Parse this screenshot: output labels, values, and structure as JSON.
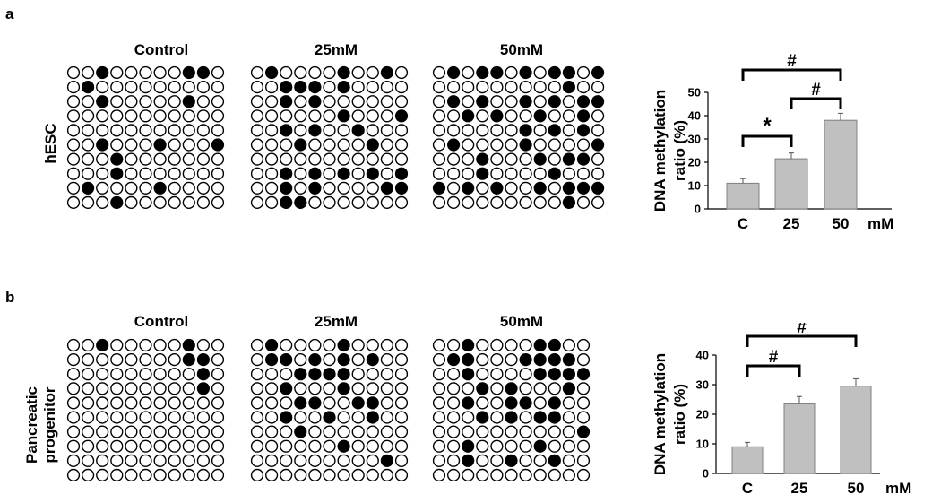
{
  "panels": [
    {
      "letter": "a",
      "row_label_lines": [
        "hESC"
      ],
      "conditions": [
        "Control",
        "25mM",
        "50mM"
      ],
      "grids": [
        [
          [
            0,
            0,
            1,
            0,
            0,
            0,
            0,
            0,
            1,
            1,
            0
          ],
          [
            0,
            1,
            0,
            0,
            0,
            0,
            0,
            0,
            0,
            0,
            0
          ],
          [
            0,
            0,
            1,
            0,
            0,
            0,
            0,
            0,
            1,
            0,
            0
          ],
          [
            0,
            0,
            0,
            0,
            0,
            0,
            0,
            0,
            0,
            0,
            0
          ],
          [
            0,
            0,
            0,
            0,
            0,
            0,
            0,
            0,
            0,
            0,
            0
          ],
          [
            0,
            0,
            1,
            0,
            0,
            0,
            1,
            0,
            0,
            0,
            1
          ],
          [
            0,
            0,
            0,
            1,
            0,
            0,
            0,
            0,
            0,
            0,
            0
          ],
          [
            0,
            0,
            0,
            1,
            0,
            0,
            0,
            0,
            0,
            0,
            0
          ],
          [
            0,
            1,
            0,
            0,
            0,
            0,
            1,
            0,
            0,
            0,
            0
          ],
          [
            0,
            0,
            0,
            1,
            0,
            0,
            0,
            0,
            0,
            0,
            0
          ]
        ],
        [
          [
            0,
            1,
            0,
            0,
            0,
            0,
            1,
            0,
            0,
            1,
            0
          ],
          [
            0,
            0,
            1,
            1,
            1,
            0,
            1,
            0,
            0,
            0,
            0
          ],
          [
            0,
            0,
            1,
            0,
            1,
            0,
            0,
            0,
            0,
            0,
            0
          ],
          [
            0,
            0,
            0,
            0,
            0,
            0,
            1,
            0,
            0,
            0,
            1
          ],
          [
            0,
            0,
            1,
            0,
            1,
            0,
            0,
            1,
            0,
            0,
            0
          ],
          [
            0,
            0,
            0,
            1,
            0,
            0,
            0,
            0,
            1,
            0,
            0
          ],
          [
            0,
            0,
            0,
            0,
            0,
            0,
            0,
            0,
            0,
            0,
            0
          ],
          [
            0,
            0,
            1,
            0,
            1,
            0,
            1,
            0,
            1,
            0,
            1
          ],
          [
            0,
            0,
            1,
            0,
            1,
            0,
            0,
            0,
            0,
            1,
            1
          ],
          [
            0,
            0,
            1,
            1,
            0,
            0,
            0,
            0,
            0,
            0,
            0
          ]
        ],
        [
          [
            0,
            1,
            0,
            1,
            1,
            0,
            1,
            0,
            1,
            1,
            0,
            1
          ],
          [
            0,
            0,
            0,
            0,
            0,
            0,
            0,
            0,
            0,
            1,
            0,
            0
          ],
          [
            0,
            1,
            0,
            1,
            0,
            0,
            1,
            0,
            1,
            0,
            1,
            1
          ],
          [
            0,
            0,
            1,
            0,
            1,
            0,
            0,
            1,
            0,
            0,
            1,
            0
          ],
          [
            0,
            0,
            0,
            0,
            0,
            0,
            1,
            0,
            1,
            0,
            1,
            0
          ],
          [
            0,
            1,
            0,
            0,
            0,
            0,
            1,
            0,
            0,
            0,
            0,
            1
          ],
          [
            0,
            0,
            0,
            1,
            0,
            0,
            0,
            1,
            0,
            1,
            1,
            0
          ],
          [
            0,
            0,
            0,
            1,
            0,
            0,
            0,
            0,
            1,
            0,
            0,
            0
          ],
          [
            1,
            0,
            1,
            0,
            1,
            0,
            0,
            1,
            0,
            1,
            1,
            1
          ],
          [
            0,
            0,
            0,
            0,
            0,
            0,
            0,
            0,
            0,
            1,
            0,
            0
          ]
        ]
      ]
    },
    {
      "letter": "b",
      "row_label_lines": [
        "Pancreatic",
        "progenitor"
      ],
      "conditions": [
        "Control",
        "25mM",
        "50mM"
      ],
      "grids": [
        [
          [
            0,
            0,
            1,
            0,
            0,
            0,
            0,
            0,
            1,
            0,
            0
          ],
          [
            0,
            0,
            0,
            0,
            0,
            0,
            0,
            0,
            1,
            1,
            0
          ],
          [
            0,
            0,
            0,
            0,
            0,
            0,
            0,
            0,
            0,
            1,
            0
          ],
          [
            0,
            0,
            0,
            0,
            0,
            0,
            0,
            0,
            0,
            1,
            0
          ],
          [
            0,
            0,
            0,
            0,
            0,
            0,
            0,
            0,
            0,
            0,
            0
          ],
          [
            0,
            0,
            0,
            0,
            0,
            0,
            0,
            0,
            0,
            0,
            0
          ],
          [
            0,
            0,
            0,
            0,
            0,
            0,
            0,
            0,
            0,
            0,
            0
          ],
          [
            0,
            0,
            0,
            0,
            0,
            0,
            0,
            0,
            0,
            0,
            0
          ],
          [
            0,
            0,
            0,
            0,
            0,
            0,
            0,
            0,
            0,
            0,
            0
          ],
          [
            0,
            0,
            0,
            0,
            0,
            0,
            0,
            0,
            0,
            0,
            0
          ]
        ],
        [
          [
            0,
            1,
            0,
            0,
            0,
            0,
            1,
            0,
            0,
            0,
            0
          ],
          [
            0,
            1,
            1,
            0,
            1,
            0,
            1,
            0,
            1,
            0,
            0
          ],
          [
            0,
            0,
            0,
            1,
            1,
            1,
            1,
            0,
            0,
            0,
            0
          ],
          [
            0,
            0,
            1,
            0,
            0,
            0,
            1,
            0,
            0,
            0,
            0
          ],
          [
            0,
            0,
            0,
            1,
            1,
            0,
            0,
            1,
            1,
            0,
            0
          ],
          [
            0,
            0,
            1,
            0,
            0,
            1,
            0,
            0,
            1,
            0,
            0
          ],
          [
            0,
            0,
            0,
            1,
            0,
            0,
            0,
            0,
            0,
            0,
            0
          ],
          [
            0,
            0,
            0,
            0,
            0,
            0,
            1,
            0,
            0,
            0,
            0
          ],
          [
            0,
            0,
            0,
            0,
            0,
            0,
            0,
            0,
            0,
            1,
            0
          ],
          [
            0,
            0,
            0,
            0,
            0,
            0,
            0,
            0,
            0,
            0,
            0
          ]
        ],
        [
          [
            0,
            0,
            1,
            0,
            0,
            0,
            0,
            1,
            1,
            0,
            0
          ],
          [
            0,
            1,
            1,
            0,
            0,
            0,
            1,
            1,
            1,
            1,
            0
          ],
          [
            0,
            0,
            1,
            0,
            0,
            0,
            0,
            1,
            1,
            1,
            1
          ],
          [
            0,
            0,
            0,
            1,
            0,
            1,
            0,
            0,
            0,
            1,
            0
          ],
          [
            0,
            0,
            1,
            0,
            0,
            1,
            1,
            0,
            1,
            0,
            0
          ],
          [
            0,
            0,
            0,
            1,
            0,
            1,
            0,
            1,
            1,
            0,
            0
          ],
          [
            0,
            0,
            0,
            0,
            0,
            0,
            0,
            0,
            0,
            0,
            1
          ],
          [
            0,
            0,
            1,
            0,
            0,
            0,
            0,
            1,
            0,
            0,
            0
          ],
          [
            0,
            0,
            1,
            0,
            0,
            1,
            0,
            0,
            1,
            0,
            0
          ],
          [
            0,
            0,
            0,
            0,
            0,
            0,
            0,
            0,
            0,
            0,
            0
          ]
        ]
      ]
    }
  ],
  "chart_data": [
    {
      "type": "bar",
      "ylabel_lines": [
        "DNA methylation",
        "ratio (%)"
      ],
      "categories": [
        "C",
        "25",
        "50"
      ],
      "x_unit": "mM",
      "values": [
        11,
        21.5,
        38
      ],
      "errors": [
        2,
        2.5,
        3
      ],
      "ylim": [
        0,
        50
      ],
      "yticks": [
        0,
        10,
        20,
        30,
        40,
        50
      ],
      "ytick_labels": [
        "0",
        "10",
        "20",
        "30",
        "40",
        "50"
      ],
      "bar_color": "#c0c0c0",
      "significance": [
        {
          "from": 0,
          "to": 1,
          "symbol": "*",
          "level": 28
        },
        {
          "from": 1,
          "to": 2,
          "symbol": "#",
          "level": 46
        },
        {
          "from": 0,
          "to": 2,
          "symbol": "#",
          "level": 53
        }
      ]
    },
    {
      "type": "bar",
      "ylabel_lines": [
        "DNA methylation",
        "ratio (%)"
      ],
      "categories": [
        "C",
        "25",
        "50"
      ],
      "x_unit": "mM",
      "values": [
        9,
        23.5,
        29.5
      ],
      "errors": [
        1.5,
        2.5,
        2.5
      ],
      "ylim": [
        0,
        40
      ],
      "yticks": [
        0,
        10,
        20,
        30,
        40
      ],
      "ytick_labels": [
        "0",
        "10",
        "20",
        "30",
        "40"
      ],
      "bar_color": "#c0c0c0",
      "significance": [
        {
          "from": 0,
          "to": 1,
          "symbol": "#",
          "level": 39
        },
        {
          "from": 0,
          "to": 2,
          "symbol": "#",
          "level": 46
        }
      ]
    }
  ]
}
